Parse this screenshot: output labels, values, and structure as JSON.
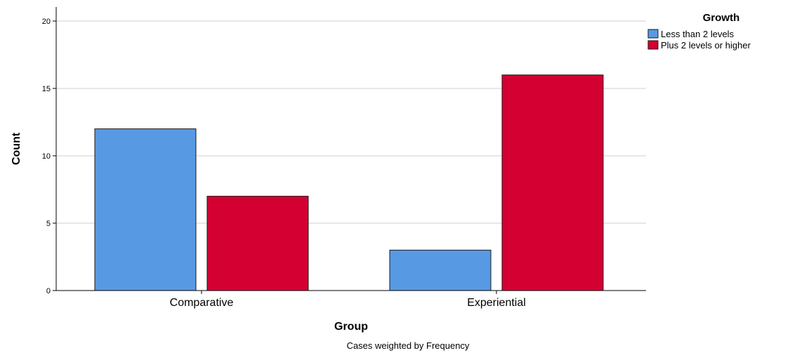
{
  "chart_data": {
    "type": "bar",
    "categories": [
      "Comparative",
      "Experiential"
    ],
    "series": [
      {
        "name": "Less than 2 levels",
        "values": [
          12,
          3
        ],
        "color": "#5899e4"
      },
      {
        "name": "Plus 2 levels or higher",
        "values": [
          7,
          16
        ],
        "color": "#d50032"
      }
    ],
    "xlabel": "Group",
    "ylabel": "Count",
    "ylim": [
      0,
      20
    ],
    "yticks": [
      0,
      5,
      10,
      15,
      20
    ],
    "legend_title": "Growth",
    "legend_position": "top-right",
    "grid": "horizontal",
    "footnote": "Cases weighted by Frequency"
  }
}
